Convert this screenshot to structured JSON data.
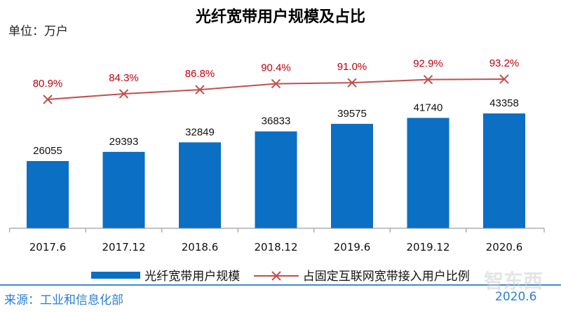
{
  "header": {
    "title": "光纤宽带用户规模及占比",
    "unit": "单位：万户"
  },
  "chart_data": {
    "type": "bar",
    "title": "光纤宽带用户规模及占比",
    "categories": [
      "2017.6",
      "2017.12",
      "2018.6",
      "2018.12",
      "2019.6",
      "2019.12",
      "2020.6"
    ],
    "series": [
      {
        "name": "光纤宽带用户规模",
        "type": "bar",
        "color": "#0b6fc4",
        "values": [
          26055,
          29393,
          32849,
          36833,
          39575,
          41740,
          43358
        ],
        "labels": [
          "26055",
          "29393",
          "32849",
          "36833",
          "39575",
          "41740",
          "43358"
        ]
      },
      {
        "name": "占固定互联网宽带接入用户比例",
        "type": "line",
        "color": "#c0392b",
        "values": [
          80.9,
          84.3,
          86.8,
          90.4,
          91.0,
          92.9,
          93.2
        ],
        "labels": [
          "80.9%",
          "84.3%",
          "86.8%",
          "90.4%",
          "91.0%",
          "92.9%",
          "93.2%"
        ]
      }
    ],
    "legend": "bottom",
    "grid": false
  },
  "footer": {
    "source": "来源：工业和信息化部",
    "date": "2020.6",
    "watermark": "智东西"
  }
}
